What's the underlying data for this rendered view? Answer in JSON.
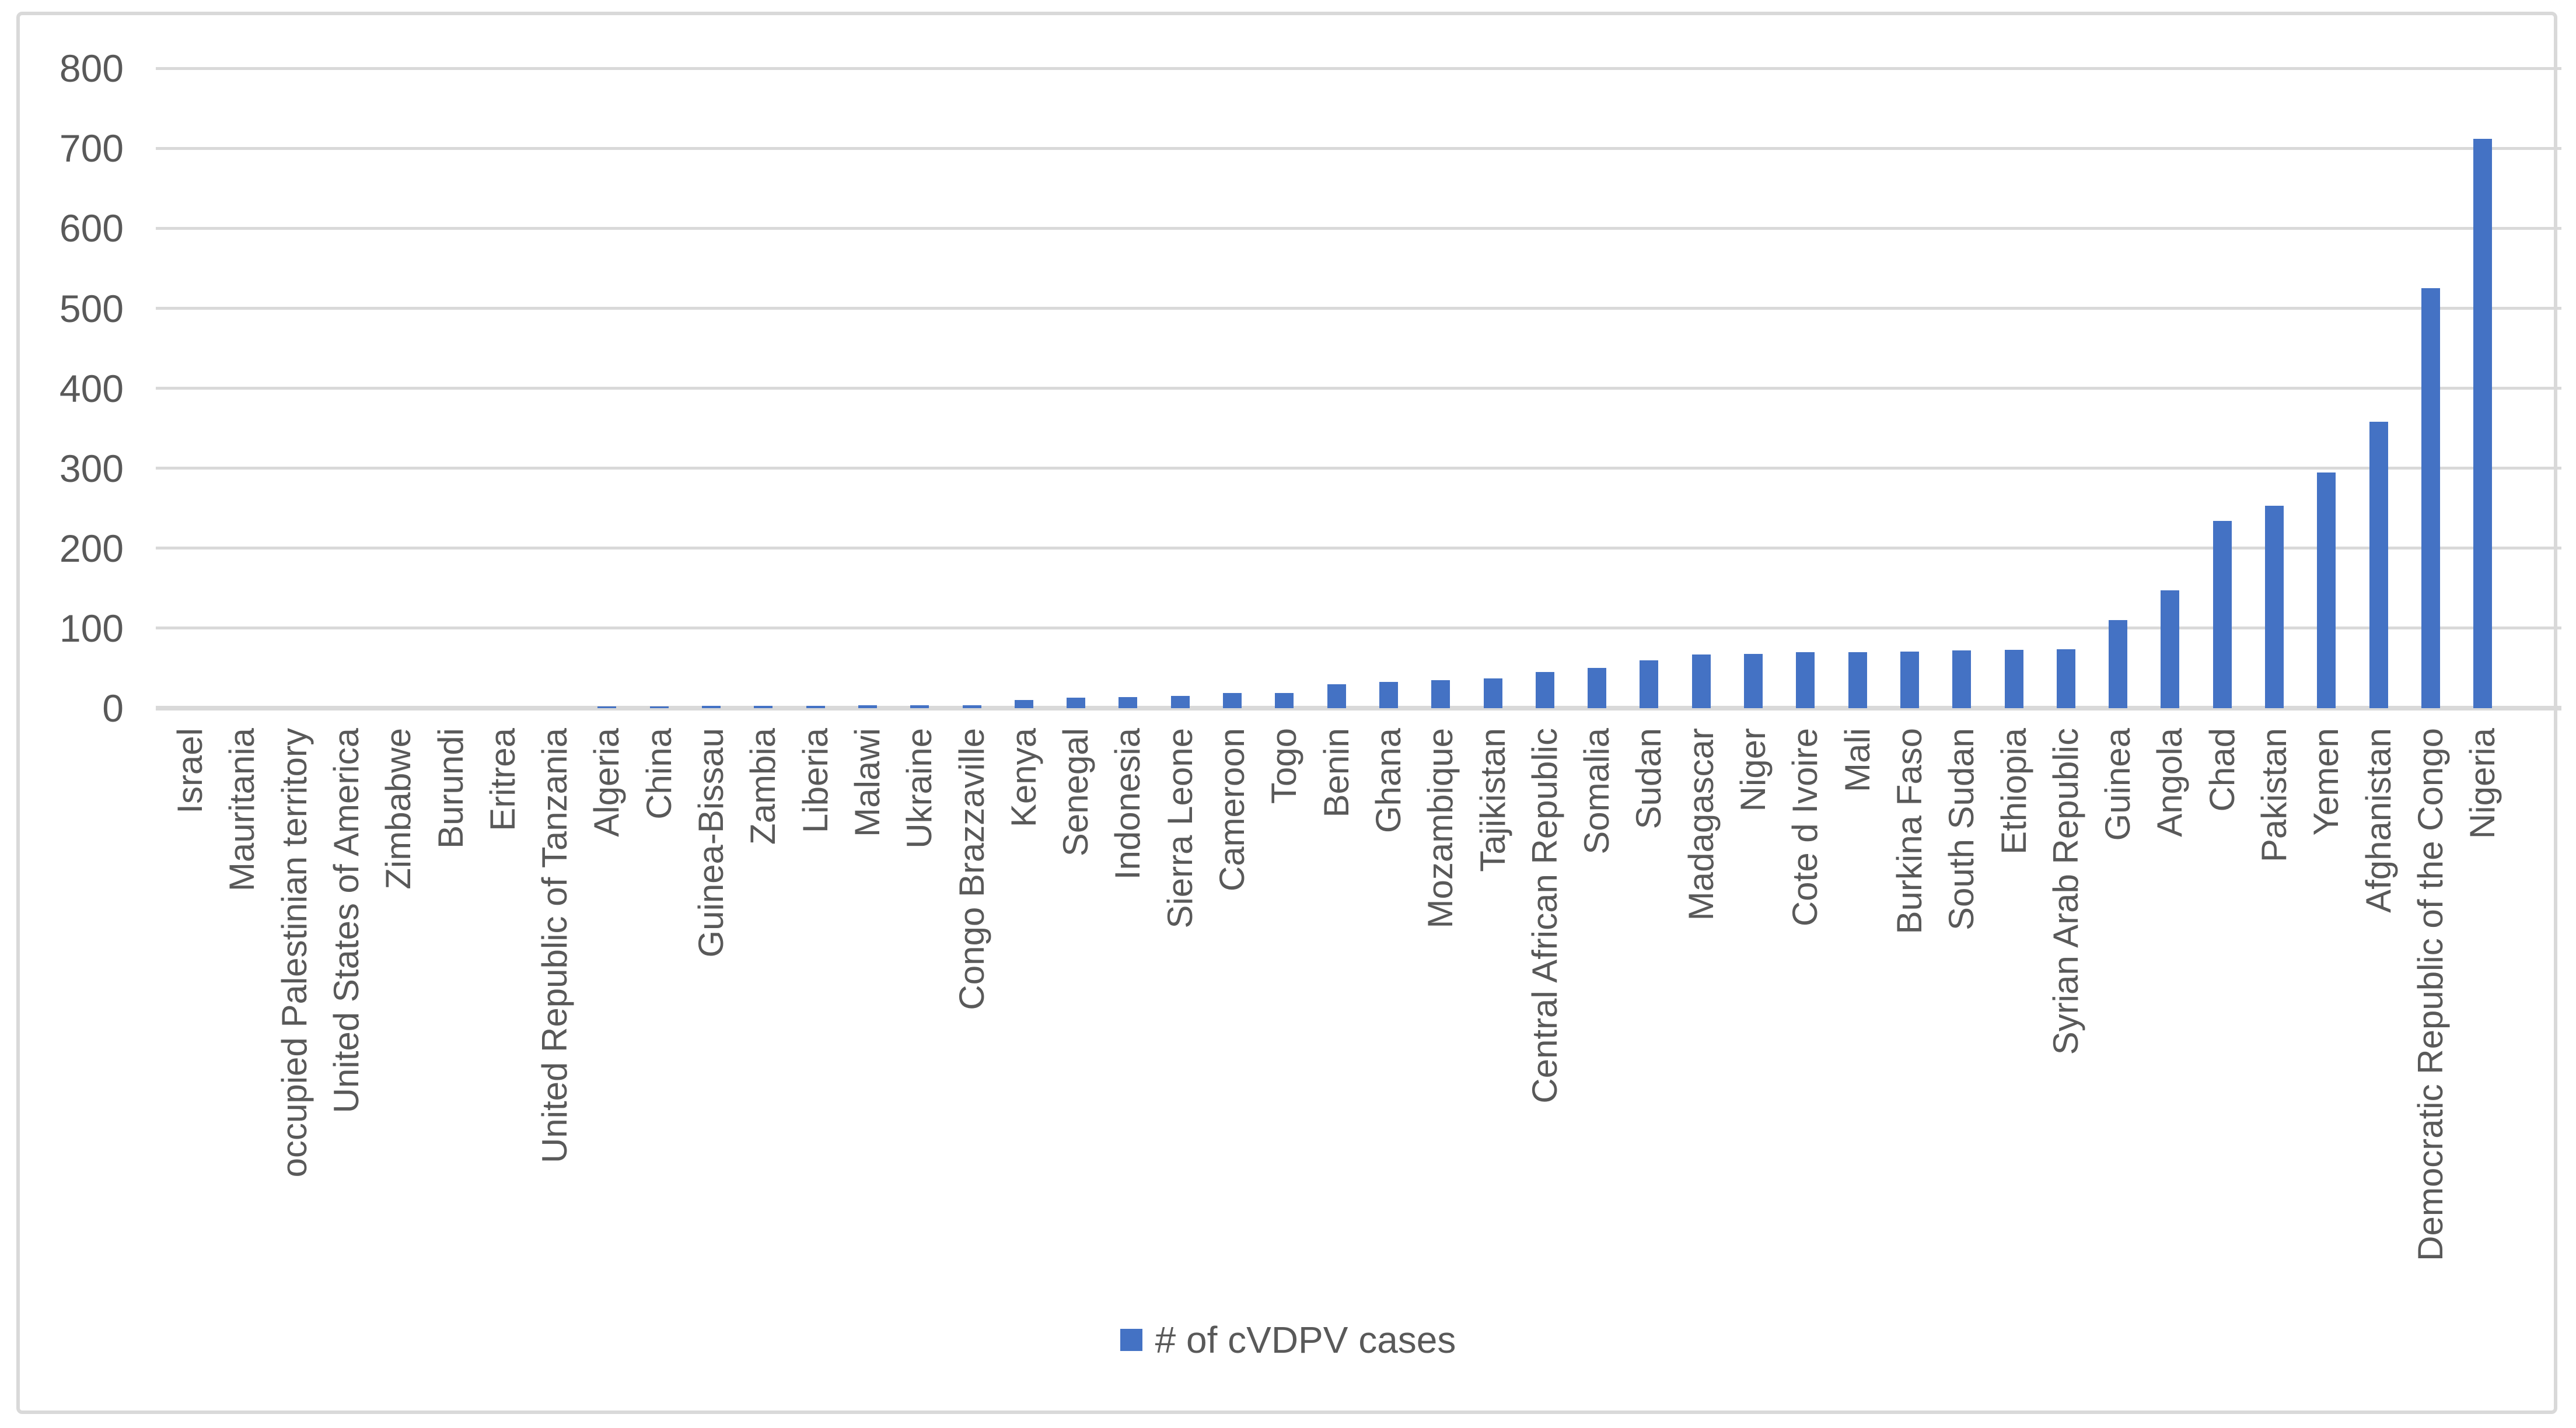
{
  "chart_data": {
    "type": "bar",
    "title": "",
    "legend": "# of cVDPV cases",
    "legend_position": "bottom-center",
    "xlabel": "",
    "ylabel": "",
    "ylim": [
      0,
      800
    ],
    "y_ticks": [
      0,
      100,
      200,
      300,
      400,
      500,
      600,
      700,
      800
    ],
    "grid": true,
    "categories": [
      "Israel",
      "Mauritania",
      "occupied Palestinian territory",
      "United States of America",
      "Zimbabwe",
      "Burundi",
      "Eritrea",
      "United Republic of Tanzania",
      "Algeria",
      "China",
      "Guinea-Bissau",
      "Zambia",
      "Liberia",
      "Malawi",
      "Ukraine",
      "Congo Brazzaville",
      "Kenya",
      "Senegal",
      "Indonesia",
      "Sierra Leone",
      "Cameroon",
      "Togo",
      "Benin",
      "Ghana",
      "Mozambique",
      "Tajikistan",
      "Central African Republic",
      "Somalia",
      "Sudan",
      "Madagascar",
      "Niger",
      "Cote d Ivoire",
      "Mali",
      "Burkina Faso",
      "South Sudan",
      "Ethiopia",
      "Syrian Arab Republic",
      "Guinea",
      "Angola",
      "Chad",
      "Pakistan",
      "Yemen",
      "Afghanistan",
      "Democratic Republic of the Congo",
      "Nigeria"
    ],
    "values": [
      0,
      0,
      0,
      0,
      0,
      0,
      0,
      0,
      2,
      2,
      3,
      3,
      3,
      4,
      4,
      4,
      10,
      13,
      14,
      15,
      19,
      19,
      30,
      33,
      35,
      37,
      45,
      50,
      60,
      67,
      68,
      70,
      70,
      71,
      72,
      73,
      74,
      110,
      147,
      234,
      253,
      295,
      358,
      525,
      712
    ],
    "colors": {
      "bar": "#4472c4",
      "axis_text": "#595959",
      "gridline": "#d9d9d9",
      "border": "#d9d9d9",
      "background": "#ffffff"
    }
  }
}
